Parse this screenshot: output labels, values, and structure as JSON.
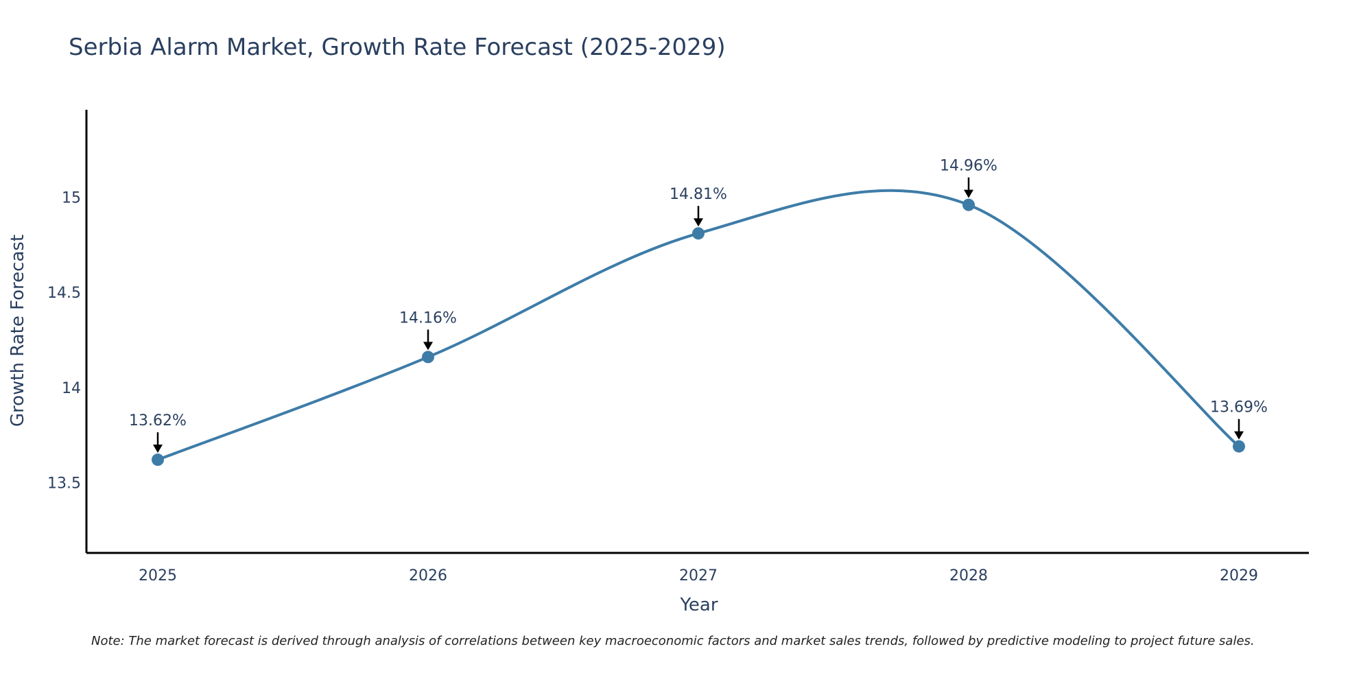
{
  "chart_data": {
    "type": "line",
    "title": "Serbia Alarm Market, Growth Rate Forecast (2025-2029)",
    "xlabel": "Year",
    "ylabel": "Growth Rate Forecast",
    "categories": [
      "2025",
      "2026",
      "2027",
      "2028",
      "2029"
    ],
    "series": [
      {
        "name": "Growth Rate Forecast",
        "values": [
          13.62,
          14.16,
          14.81,
          14.96,
          13.69
        ],
        "labels": [
          "13.62%",
          "14.16%",
          "14.81%",
          "14.96%",
          "13.69%"
        ]
      }
    ],
    "ylim": [
      13.13,
      15.46
    ],
    "yticks": [
      13.5,
      14,
      14.5,
      15
    ],
    "ytick_labels": [
      "13.5",
      "14",
      "14.5",
      "15"
    ],
    "grid": false,
    "line_shape": "spline",
    "line_color": "#3e7ca8",
    "marker_color": "#3e7ca8",
    "annotation_arrow_color": "#000000",
    "axis_color": "#000000"
  },
  "note": "Note: The market forecast is derived through analysis of correlations between key macroeconomic factors and market sales trends, followed by predictive modeling to project future sales."
}
